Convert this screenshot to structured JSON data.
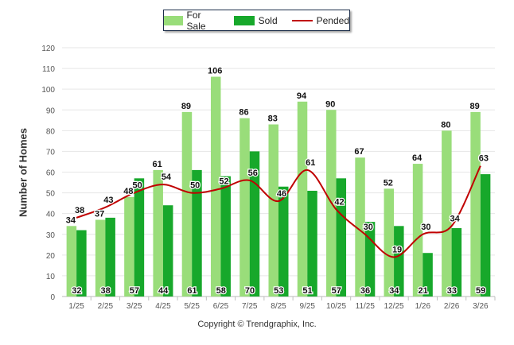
{
  "chart_data": {
    "type": "bar",
    "ylabel": "Number of Homes",
    "xlabel": "",
    "ylim": [
      0,
      120
    ],
    "yticks": [
      0,
      10,
      20,
      30,
      40,
      50,
      60,
      70,
      80,
      90,
      100,
      110,
      120
    ],
    "grid": true,
    "legend_position": "top-center",
    "categories": [
      "1/25",
      "2/25",
      "3/25",
      "4/25",
      "5/25",
      "6/25",
      "7/25",
      "8/25",
      "9/25",
      "10/25",
      "11/25",
      "12/25",
      "1/26",
      "2/26",
      "3/26"
    ],
    "series": [
      {
        "name": "For Sale",
        "type": "bar",
        "color": "#99dd7a",
        "values": [
          34,
          37,
          48,
          61,
          89,
          106,
          86,
          83,
          94,
          90,
          67,
          52,
          64,
          80,
          89
        ]
      },
      {
        "name": "Sold",
        "type": "bar",
        "color": "#17a82b",
        "values": [
          32,
          38,
          57,
          44,
          61,
          58,
          70,
          53,
          51,
          57,
          36,
          34,
          21,
          33,
          59
        ]
      },
      {
        "name": "Pended",
        "type": "line",
        "color": "#c00000",
        "values": [
          38,
          43,
          50,
          54,
          50,
          52,
          56,
          46,
          61,
          42,
          30,
          19,
          30,
          34,
          63
        ]
      }
    ]
  },
  "legend": {
    "for_sale": "For Sale",
    "sold": "Sold",
    "pended": "Pended"
  },
  "footer": {
    "copyright": "Copyright © Trendgraphix, Inc."
  }
}
